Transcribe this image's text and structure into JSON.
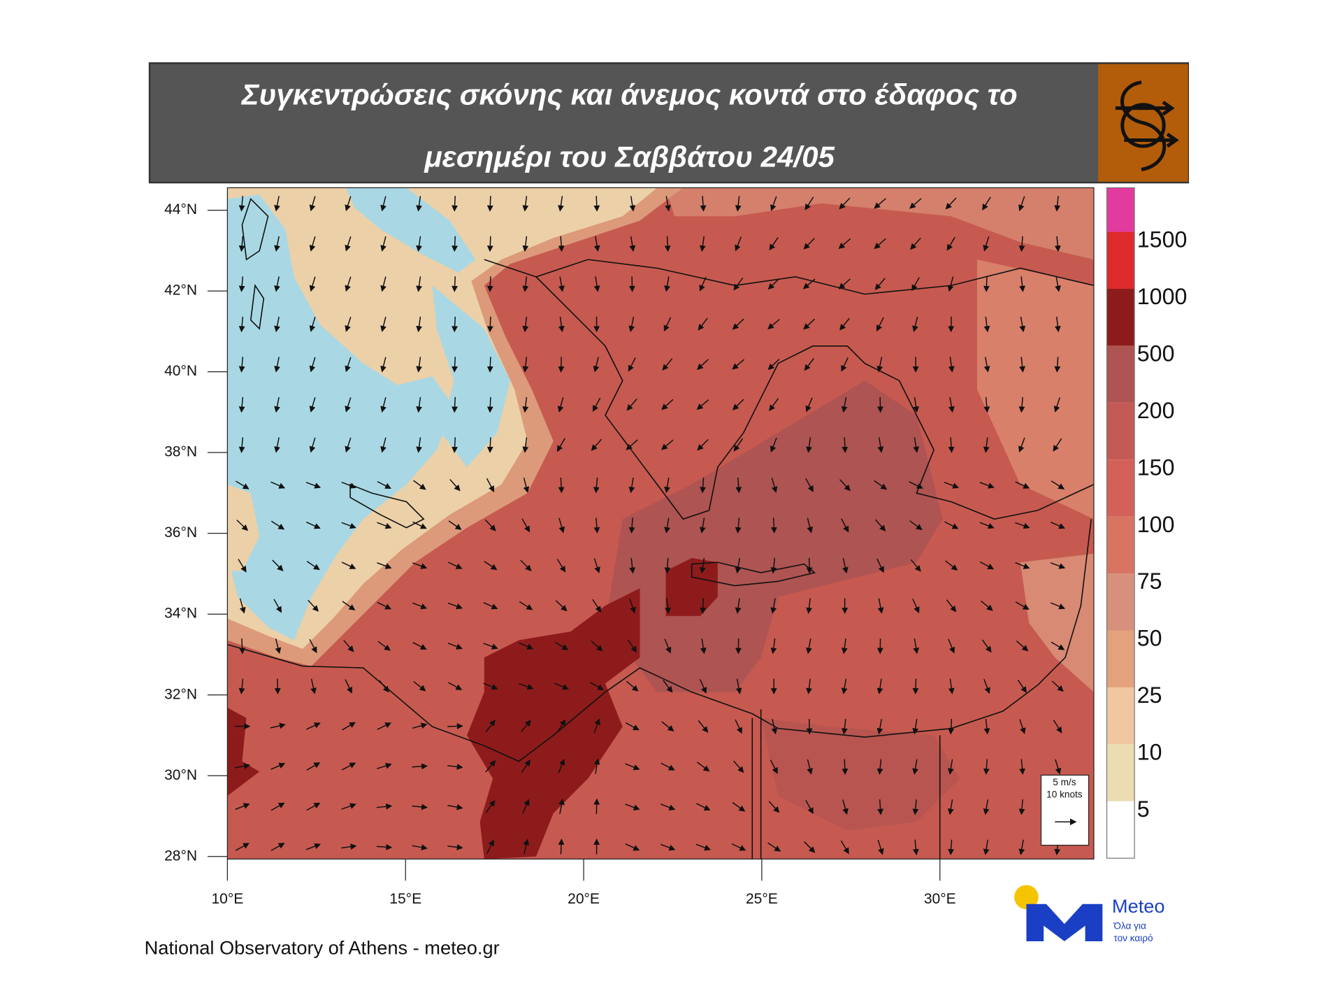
{
  "header": {
    "title_lines": [
      "Συγκεντρώσεις σκόνης και άνεμος κοντά στο έδαφος το",
      "μεσημέρι του Σαββάτου 24/05"
    ]
  },
  "map": {
    "lat_labels": [
      "44°N",
      "42°N",
      "40°N",
      "38°N",
      "36°N",
      "34°N",
      "32°N",
      "30°N",
      "28°N"
    ],
    "lon_labels": [
      "10°E",
      "15°E",
      "20°E",
      "25°E",
      "30°E"
    ],
    "wind_legend": [
      "5 m/s",
      "10 knots"
    ]
  },
  "colorbar": {
    "labels": [
      "1500",
      "1000",
      "500",
      "200",
      "150",
      "100",
      "75",
      "50",
      "25",
      "10",
      "5"
    ],
    "colors": [
      "#e23a9e",
      "#dd2a2a",
      "#8e1b1b",
      "#ae5452",
      "#c45a55",
      "#d4605a",
      "#d87462",
      "#d8907e",
      "#e3a27c",
      "#f0c7a0",
      "#ecdcb2",
      "#ffffff"
    ]
  },
  "footer": {
    "credit": "National Observatory of Athens - meteo.gr",
    "logo": {
      "name": "Meteo",
      "tagline": [
        "Όλα για",
        "τον καιρό"
      ]
    }
  }
}
